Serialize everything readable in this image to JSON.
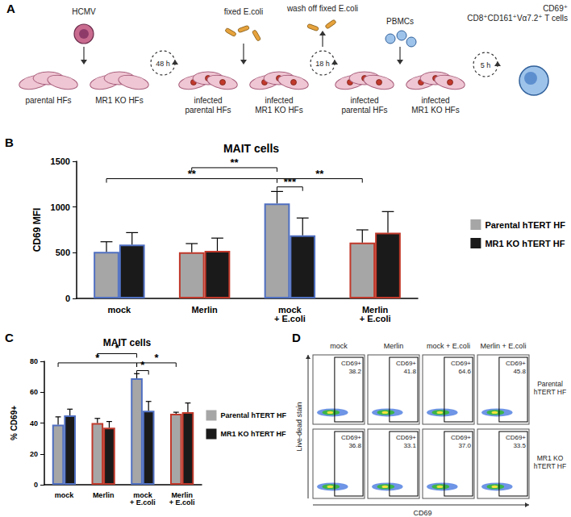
{
  "diagram": {
    "panel_label": "A",
    "virus": "HCMV",
    "cells_1": [
      "parental HFs",
      "MR1 KO HFs"
    ],
    "time_1": "48 h",
    "bacteria": "fixed E.coli",
    "cells_2": [
      "infected\nparental HFs",
      "infected\nMR1 KO HFs"
    ],
    "wash": "wash off fixed E.coli",
    "time_2": "18 h",
    "pbmc": "PBMCs",
    "cells_3": [
      "infected\nparental HFs",
      "infected\nMR1 KO HFs"
    ],
    "time_3": "5 h",
    "result": "CD69⁺\nCD8⁺CD161⁺Vα7.2⁺ T cells"
  },
  "chart_data": [
    {
      "panel_label": "B",
      "type": "bar",
      "title": "MAIT cells",
      "y_label": "CD69 MFI",
      "categories": [
        "mock",
        "Merlin",
        "mock\n+ E.coli",
        "Merlin\n+ E.coli"
      ],
      "series": [
        {
          "name": "Parental hTERT HF",
          "color": "#a6a6a6",
          "values": [
            510,
            505,
            1040,
            610
          ],
          "errors": [
            110,
            95,
            130,
            140
          ]
        },
        {
          "name": "MR1 KO hTERT HF",
          "color": "#1a1a1a",
          "values": [
            590,
            520,
            690,
            720
          ],
          "errors": [
            130,
            140,
            190,
            230
          ]
        }
      ],
      "ylim": [
        0,
        1500
      ],
      "yticks": [
        0,
        500,
        1000,
        1500
      ],
      "grid": false,
      "legend": "right",
      "annotations": [
        {
          "from": [
            2,
            0
          ],
          "to": [
            2,
            1
          ],
          "label": "***",
          "y": 1220
        },
        {
          "from": [
            0,
            0
          ],
          "to": [
            2,
            0
          ],
          "label": "**",
          "y": 1310
        },
        {
          "from": [
            2,
            0
          ],
          "to": [
            3,
            0
          ],
          "label": "**",
          "y": 1310
        },
        {
          "from": [
            1,
            0
          ],
          "to": [
            2,
            0
          ],
          "label": "**",
          "y": 1430
        }
      ]
    },
    {
      "panel_label": "C",
      "type": "bar",
      "title": "MAIT cells",
      "y_label": "% CD69+",
      "categories": [
        "mock",
        "Merlin",
        "mock\n+ E.coli",
        "Merlin\n+ E.coli"
      ],
      "series": [
        {
          "name": "Parental hTERT HF",
          "color": "#a6a6a6",
          "values": [
            39,
            40,
            69,
            46
          ],
          "errors": [
            5,
            3,
            3,
            1
          ]
        },
        {
          "name": "MR1 KO hTERT HF",
          "color": "#1a1a1a",
          "values": [
            45,
            37,
            48,
            47
          ],
          "errors": [
            4,
            4,
            6,
            6
          ]
        }
      ],
      "ylim": [
        0,
        80
      ],
      "yticks": [
        0,
        20,
        40,
        60,
        80
      ],
      "grid": false,
      "legend": "right",
      "annotations": [
        {
          "from": [
            2,
            0
          ],
          "to": [
            2,
            1
          ],
          "label": "*",
          "y": 74
        },
        {
          "from": [
            0,
            0
          ],
          "to": [
            2,
            0
          ],
          "label": "*",
          "y": 79
        },
        {
          "from": [
            2,
            0
          ],
          "to": [
            3,
            0
          ],
          "label": "*",
          "y": 79
        },
        {
          "from": [
            1,
            0
          ],
          "to": [
            2,
            0
          ],
          "label": "*",
          "y": 85
        }
      ]
    }
  ],
  "flow_panel": {
    "panel_label": "D",
    "columns": [
      "mock",
      "Merlin",
      "mock + E.coli",
      "Merlin + E.coli"
    ],
    "rows": [
      "Parental\nhTERT HF",
      "MR1 KO\nhTERT HF"
    ],
    "y_label": "Live-dead stain",
    "x_label": "CD69",
    "gate_label": "CD69+",
    "values": [
      [
        38.2,
        41.8,
        64.6,
        45.8
      ],
      [
        36.8,
        33.1,
        {
          "value": 37,
          "label": "37.0"
        },
        33.5
      ]
    ]
  }
}
